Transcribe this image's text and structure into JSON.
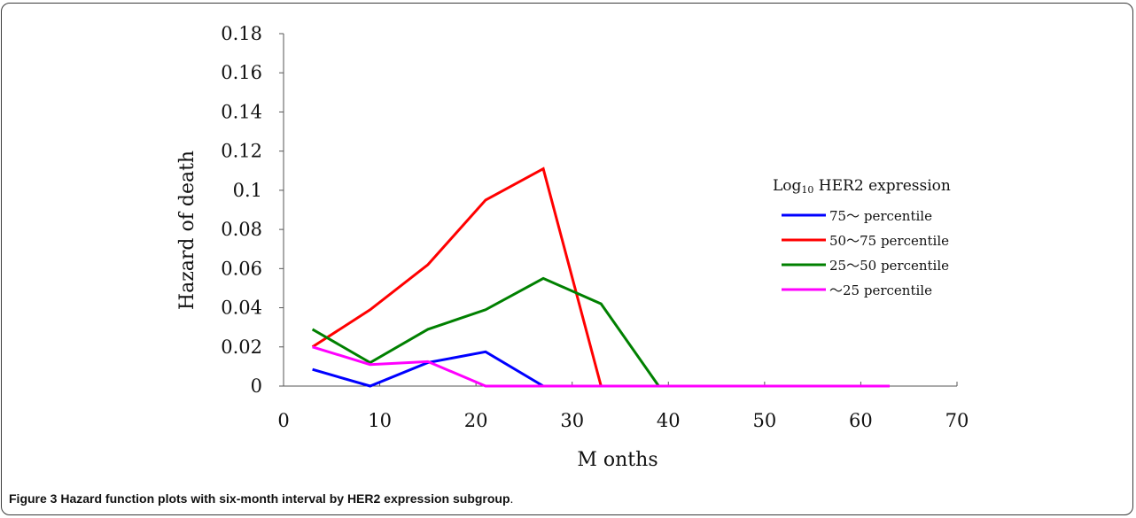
{
  "caption": {
    "label": "Figure 3",
    "text": "Hazard function plots with six-month interval by HER2 expression subgroup",
    "end": "."
  },
  "chart_data": {
    "type": "line",
    "xlabel": "M onths",
    "ylabel": "Hazard of death",
    "xlim": [
      0,
      70
    ],
    "ylim": [
      0,
      0.18
    ],
    "x_ticks": [
      "0",
      "10",
      "20",
      "30",
      "40",
      "50",
      "60",
      "70"
    ],
    "y_ticks": [
      "0",
      "0.02",
      "0.04",
      "0.06",
      "0.08",
      "0.1",
      "0.12",
      "0.14",
      "0.16",
      "0.18"
    ],
    "legend_title_main": "Log",
    "legend_title_sub": "10",
    "legend_title_rest": " HER2 expression",
    "legend_position": "right",
    "series": [
      {
        "name": "75～ percentile",
        "color": "#0000ff",
        "x": [
          3,
          9,
          15,
          21,
          27
        ],
        "y": [
          0.0085,
          0.0,
          0.012,
          0.0175,
          0.0
        ]
      },
      {
        "name": "50～75 percentile",
        "color": "#ff0000",
        "x": [
          3,
          9,
          15,
          21,
          27,
          33
        ],
        "y": [
          0.02,
          0.039,
          0.062,
          0.095,
          0.111,
          0.0
        ]
      },
      {
        "name": "25～50 percentile",
        "color": "#008000",
        "x": [
          3,
          9,
          15,
          21,
          27,
          33,
          39
        ],
        "y": [
          0.029,
          0.012,
          0.029,
          0.039,
          0.055,
          0.042,
          0.0
        ]
      },
      {
        "name": "～25 percentile",
        "color": "#ff00ff",
        "x": [
          3,
          9,
          15,
          21,
          27,
          33,
          39,
          45,
          51,
          57,
          63
        ],
        "y": [
          0.02,
          0.011,
          0.0125,
          0.0,
          0.0,
          0.0,
          0.0,
          0.0,
          0.0,
          0.0,
          0.0
        ]
      }
    ]
  }
}
